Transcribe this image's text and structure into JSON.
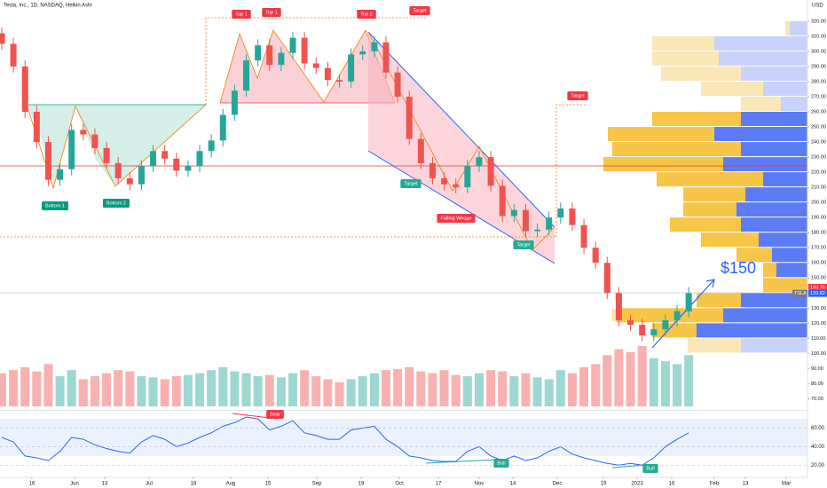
{
  "chart_data": {
    "type": "candlestick",
    "title": "Tesla, Inc., 1D, NASDAQ, Heikin Ashi",
    "currency": "USD",
    "up_color": "#26a69a",
    "down_color": "#ef5350",
    "xlim": [
      -0.15,
      69.2
    ],
    "xticks": [
      {
        "value": 2.59,
        "label": "16"
      },
      {
        "value": 6.25,
        "label": "Jun"
      },
      {
        "value": 8.84,
        "label": "13"
      },
      {
        "value": 12.65,
        "label": "Jul"
      },
      {
        "value": 16.46,
        "label": "18"
      },
      {
        "value": 19.66,
        "label": "Aug"
      },
      {
        "value": 22.87,
        "label": "15"
      },
      {
        "value": 27.06,
        "label": "Sep"
      },
      {
        "value": 30.87,
        "label": "19"
      },
      {
        "value": 34.15,
        "label": "Oct"
      },
      {
        "value": 37.5,
        "label": "17"
      },
      {
        "value": 41.0,
        "label": "Nov"
      },
      {
        "value": 43.9,
        "label": "14"
      },
      {
        "value": 47.71,
        "label": "Dec"
      },
      {
        "value": 51.68,
        "label": "19"
      },
      {
        "value": 54.57,
        "label": "2023"
      },
      {
        "value": 57.54,
        "label": "16"
      },
      {
        "value": 61.2,
        "label": "Feb"
      },
      {
        "value": 63.87,
        "label": "13"
      },
      {
        "value": 67.38,
        "label": "Mar"
      }
    ],
    "ylim": [
      65,
      334
    ],
    "yticks": [
      {
        "value": 70,
        "label": "70.00"
      },
      {
        "value": 80,
        "label": "80.00"
      },
      {
        "value": 90,
        "label": "90.00"
      },
      {
        "value": 100,
        "label": "100.00"
      },
      {
        "value": 110,
        "label": "110.00"
      },
      {
        "value": 120,
        "label": "120.00"
      },
      {
        "value": 130,
        "label": "130.00"
      },
      {
        "value": 140,
        "label": "140.00"
      },
      {
        "value": 150,
        "label": "150.00"
      },
      {
        "value": 160,
        "label": "160.00"
      },
      {
        "value": 170,
        "label": "170.00"
      },
      {
        "value": 180,
        "label": "180.00"
      },
      {
        "value": 190,
        "label": "190.00"
      },
      {
        "value": 200,
        "label": "200.00"
      },
      {
        "value": 210,
        "label": "210.00"
      },
      {
        "value": 220,
        "label": "220.00"
      },
      {
        "value": 230,
        "label": "230.00"
      },
      {
        "value": 240,
        "label": "240.00"
      },
      {
        "value": 250,
        "label": "250.00"
      },
      {
        "value": 260,
        "label": "260.00"
      },
      {
        "value": 270,
        "label": "270.00"
      },
      {
        "value": 280,
        "label": "280.00"
      },
      {
        "value": 290,
        "label": "290.00"
      },
      {
        "value": 300,
        "label": "300.00"
      },
      {
        "value": 310,
        "label": "310.00"
      },
      {
        "value": 320,
        "label": "320.00"
      }
    ],
    "candles": {
      "open": [
        312,
        305,
        290,
        260,
        240,
        215,
        222,
        248,
        245,
        236,
        226,
        216,
        212,
        224,
        234,
        229,
        221,
        224,
        234,
        241,
        258,
        274,
        294,
        304,
        291,
        299,
        309,
        292,
        289,
        281,
        280,
        298,
        300,
        306,
        286,
        270,
        242,
        226,
        216,
        212,
        210,
        224,
        230,
        211,
        191,
        195,
        181,
        182,
        190,
        196,
        185,
        170,
        160,
        140,
        122,
        119,
        112,
        116,
        122,
        128
      ],
      "high": [
        316,
        309,
        294,
        264,
        244,
        226,
        252,
        252,
        249,
        240,
        230,
        220,
        228,
        238,
        238,
        233,
        228,
        238,
        245,
        262,
        278,
        298,
        308,
        308,
        303,
        313,
        313,
        296,
        293,
        285,
        302,
        304,
        310,
        310,
        290,
        274,
        246,
        230,
        220,
        216,
        228,
        234,
        234,
        215,
        199,
        199,
        186,
        194,
        200,
        200,
        189,
        174,
        164,
        144,
        126,
        123,
        120,
        126,
        132,
        144
      ],
      "low": [
        301,
        286,
        256,
        236,
        211,
        211,
        218,
        241,
        232,
        222,
        212,
        208,
        208,
        220,
        225,
        217,
        217,
        220,
        230,
        237,
        254,
        270,
        290,
        287,
        287,
        295,
        288,
        285,
        277,
        276,
        276,
        294,
        296,
        282,
        266,
        238,
        222,
        212,
        208,
        206,
        206,
        220,
        207,
        187,
        187,
        177,
        177,
        178,
        186,
        181,
        166,
        156,
        136,
        118,
        115,
        108,
        108,
        112,
        118,
        124
      ],
      "close": [
        305,
        290,
        260,
        240,
        215,
        222,
        248,
        245,
        236,
        226,
        216,
        212,
        224,
        234,
        229,
        221,
        224,
        234,
        241,
        258,
        274,
        294,
        304,
        291,
        299,
        309,
        292,
        289,
        281,
        280,
        298,
        300,
        306,
        286,
        270,
        242,
        226,
        216,
        212,
        210,
        224,
        230,
        211,
        191,
        195,
        181,
        182,
        190,
        196,
        185,
        170,
        160,
        140,
        122,
        119,
        112,
        116,
        122,
        128,
        140
      ]
    },
    "volume": {
      "values": [
        55,
        60,
        65,
        58,
        70,
        50,
        60,
        45,
        50,
        55,
        60,
        58,
        50,
        48,
        45,
        50,
        52,
        55,
        60,
        65,
        58,
        55,
        50,
        52,
        48,
        55,
        60,
        50,
        45,
        40,
        45,
        50,
        55,
        60,
        62,
        65,
        58,
        55,
        60,
        52,
        50,
        55,
        60,
        58,
        50,
        55,
        48,
        45,
        60,
        55,
        65,
        70,
        85,
        95,
        90,
        100,
        80,
        75,
        70,
        85
      ]
    },
    "rsi": {
      "ylim": [
        5,
        72
      ],
      "color": "#2962ff",
      "yticks": [
        {
          "value": 20,
          "label": "20.00"
        },
        {
          "value": 40,
          "label": "40.00"
        },
        {
          "value": 60,
          "label": "60.00"
        }
      ],
      "values": [
        50,
        45,
        30,
        28,
        25,
        35,
        50,
        48,
        42,
        38,
        35,
        33,
        45,
        52,
        48,
        40,
        44,
        50,
        55,
        62,
        66,
        72,
        70,
        58,
        62,
        68,
        55,
        52,
        48,
        48,
        58,
        60,
        62,
        48,
        40,
        30,
        28,
        25,
        24,
        24,
        35,
        40,
        30,
        25,
        30,
        25,
        28,
        35,
        40,
        32,
        28,
        25,
        22,
        20,
        22,
        20,
        28,
        40,
        48,
        55
      ]
    },
    "volume_profile": {
      "prices": [
        310,
        300,
        290,
        280,
        270,
        260,
        250,
        240,
        230,
        220,
        210,
        200,
        190,
        180,
        170,
        160,
        150,
        140,
        130,
        120,
        110,
        100
      ],
      "up": [
        20,
        105,
        100,
        75,
        50,
        30,
        75,
        105,
        75,
        95,
        50,
        70,
        80,
        75,
        55,
        40,
        35,
        0,
        75,
        95,
        125,
        75
      ],
      "down": [
        5,
        70,
        75,
        90,
        70,
        45,
        100,
        120,
        145,
        135,
        120,
        70,
        60,
        80,
        65,
        40,
        15,
        50,
        50,
        120,
        50,
        60
      ],
      "value_area": [
        110,
        260
      ],
      "up_color": "#5b7cf5",
      "down_color": "#f7c548",
      "up_pale": "#c8d2fb",
      "down_pale": "#fbe6b8"
    },
    "annotations": [
      {
        "text": "Top 1",
        "color": "#f23645"
      },
      {
        "text": "Top 1",
        "color": "#f23645"
      },
      {
        "text": "Top 2",
        "color": "#f23645"
      },
      {
        "text": "Target",
        "color": "#f23645"
      },
      {
        "text": "Target",
        "color": "#f23645"
      },
      {
        "text": "Target",
        "color": "#22ab94"
      },
      {
        "text": "Target",
        "color": "#22ab94"
      },
      {
        "text": "Bottom 1",
        "color": "#089981"
      },
      {
        "text": "Bottom 2",
        "color": "#089981"
      },
      {
        "text": "Falling Wedge",
        "color": "#f23645"
      },
      {
        "text": "Bear",
        "color": "#f23645"
      },
      {
        "text": "Bull",
        "color": "#22ab94"
      },
      {
        "text": "Bull",
        "color": "#22ab94"
      }
    ],
    "high_marker": 143.75,
    "last_price": {
      "symbol": "TSLA",
      "value": 139.82
    },
    "callout": "$150"
  }
}
